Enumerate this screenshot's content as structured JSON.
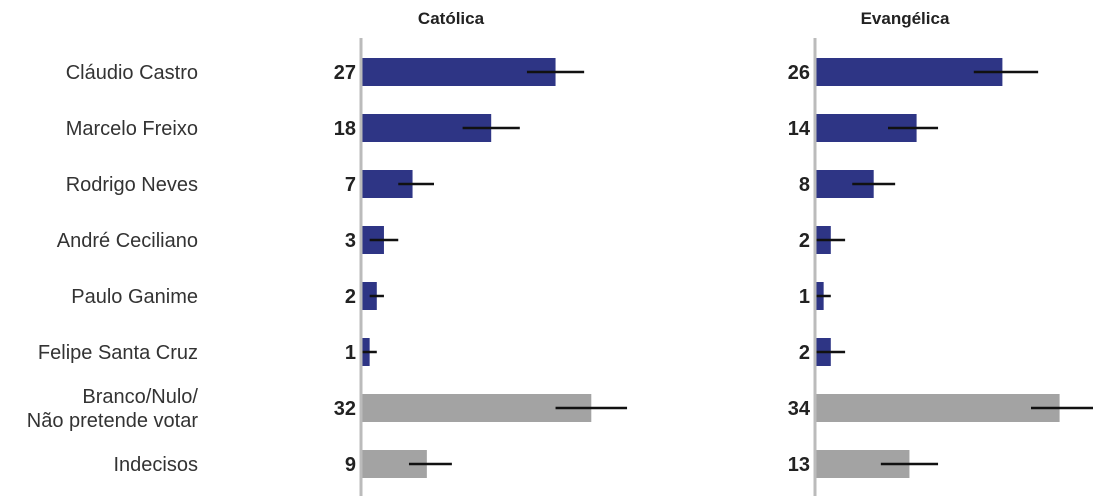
{
  "chart_data": {
    "type": "bar",
    "orientation": "horizontal",
    "categories": [
      "Cláudio Castro",
      "Marcelo Freixo",
      "Rodrigo Neves",
      "André Ceciliano",
      "Paulo Ganime",
      "Felipe Santa Cruz",
      "Branco/Nulo/ Não pretende votar",
      "Indecisos"
    ],
    "category_lines": [
      [
        "Cláudio Castro"
      ],
      [
        "Marcelo Freixo"
      ],
      [
        "Rodrigo Neves"
      ],
      [
        "André Ceciliano"
      ],
      [
        "Paulo Ganime"
      ],
      [
        "Felipe Santa Cruz"
      ],
      [
        "Branco/Nulo/",
        "Não pretende votar"
      ],
      [
        "Indecisos"
      ]
    ],
    "series": [
      {
        "name": "Católica",
        "values": [
          27,
          18,
          7,
          3,
          2,
          1,
          32,
          9
        ],
        "error_low": [
          23,
          14,
          5,
          1,
          1,
          0,
          27,
          6.5
        ],
        "error_high": [
          31,
          22,
          10,
          5,
          3,
          2,
          37,
          12.5
        ]
      },
      {
        "name": "Evangélica",
        "values": [
          26,
          14,
          8,
          2,
          1,
          2,
          34,
          13
        ],
        "error_low": [
          22,
          10,
          5,
          0,
          0,
          0,
          30,
          9
        ],
        "error_high": [
          31,
          17,
          11,
          4,
          2,
          4,
          40,
          17
        ]
      }
    ],
    "xlim": [
      0,
      40
    ],
    "grid": false,
    "legend": "none",
    "colors": {
      "candidate_bar": "#2e3585",
      "other_bar": "#a3a3a3",
      "error_bar": "#111111",
      "axis": "#bbbbbb"
    }
  }
}
